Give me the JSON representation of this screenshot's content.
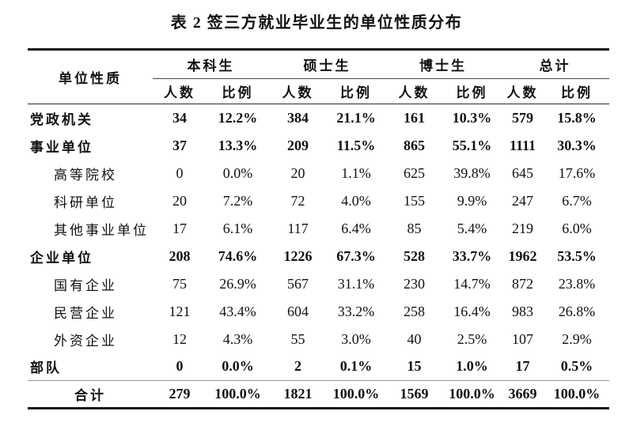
{
  "title": "表 2 签三方就业毕业生的单位性质分布",
  "table": {
    "corner_header": "单位性质",
    "group_headers": [
      "本科生",
      "硕士生",
      "博士生",
      "总计"
    ],
    "sub_header_count": "人数",
    "sub_header_ratio": "比例",
    "rows": [
      {
        "label": "党政机关",
        "indent": "top",
        "bold": true,
        "values": [
          "34",
          "12.2%",
          "384",
          "21.1%",
          "161",
          "10.3%",
          "579",
          "15.8%"
        ]
      },
      {
        "label": "事业单位",
        "indent": "top",
        "bold": true,
        "values": [
          "37",
          "13.3%",
          "209",
          "11.5%",
          "865",
          "55.1%",
          "1111",
          "30.3%"
        ]
      },
      {
        "label": "高等院校",
        "indent": "sub",
        "bold": false,
        "values": [
          "0",
          "0.0%",
          "20",
          "1.1%",
          "625",
          "39.8%",
          "645",
          "17.6%"
        ]
      },
      {
        "label": "科研单位",
        "indent": "sub",
        "bold": false,
        "values": [
          "20",
          "7.2%",
          "72",
          "4.0%",
          "155",
          "9.9%",
          "247",
          "6.7%"
        ]
      },
      {
        "label": "其他事业单位",
        "indent": "sub",
        "bold": false,
        "values": [
          "17",
          "6.1%",
          "117",
          "6.4%",
          "85",
          "5.4%",
          "219",
          "6.0%"
        ]
      },
      {
        "label": "企业单位",
        "indent": "top",
        "bold": true,
        "values": [
          "208",
          "74.6%",
          "1226",
          "67.3%",
          "528",
          "33.7%",
          "1962",
          "53.5%"
        ]
      },
      {
        "label": "国有企业",
        "indent": "sub",
        "bold": false,
        "values": [
          "75",
          "26.9%",
          "567",
          "31.1%",
          "230",
          "14.7%",
          "872",
          "23.8%"
        ]
      },
      {
        "label": "民营企业",
        "indent": "sub",
        "bold": false,
        "values": [
          "121",
          "43.4%",
          "604",
          "33.2%",
          "258",
          "16.4%",
          "983",
          "26.8%"
        ]
      },
      {
        "label": "外资企业",
        "indent": "sub",
        "bold": false,
        "values": [
          "12",
          "4.3%",
          "55",
          "3.0%",
          "40",
          "2.5%",
          "107",
          "2.9%"
        ]
      },
      {
        "label": "部队",
        "indent": "top",
        "bold": true,
        "values": [
          "0",
          "0.0%",
          "2",
          "0.1%",
          "15",
          "1.0%",
          "17",
          "0.5%"
        ]
      },
      {
        "label": "合计",
        "indent": "total",
        "bold": true,
        "values": [
          "279",
          "100.0%",
          "1821",
          "100.0%",
          "1569",
          "100.0%",
          "3669",
          "100.0%"
        ]
      }
    ]
  },
  "colors": {
    "text": "#111111",
    "rule_heavy": "#151515",
    "rule_faint": "#9a9a9a",
    "background": "#ffffff"
  }
}
